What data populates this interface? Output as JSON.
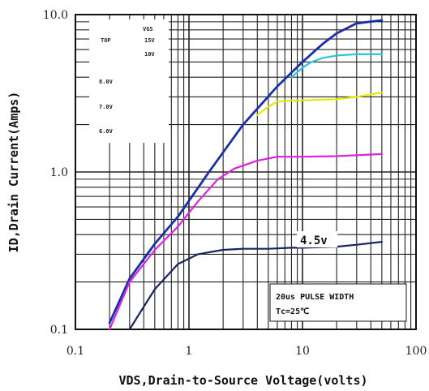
{
  "chart_data": {
    "type": "line",
    "x_scale": "log",
    "y_scale": "log",
    "xlim": [
      0.1,
      100
    ],
    "ylim": [
      0.1,
      10.0
    ],
    "x_ticks": [
      "0.1",
      "1",
      "10",
      "100"
    ],
    "y_ticks": [
      "0.1",
      "1.0",
      "10.0"
    ],
    "xlabel": "VDS,Drain-to-Source Voltage(volts)",
    "ylabel": "ID,Drain Current(Amps)",
    "grid": true,
    "legend": {
      "header": "VGS",
      "rows": [
        {
          "prefix": "TOP",
          "value": "15V"
        },
        {
          "prefix": "",
          "value": "10V"
        },
        {
          "prefix": "",
          "value": "8.0V"
        },
        {
          "prefix": "",
          "value": "7.0V"
        },
        {
          "prefix": "",
          "value": "6.0V"
        }
      ]
    },
    "annotation": [
      "20us PULSE WIDTH",
      "Tc=25℃"
    ],
    "curve_label": "4.5v",
    "series": [
      {
        "color": "#1a2fa8",
        "x": [
          0.2,
          0.3,
          0.5,
          0.8,
          1.5,
          3,
          6,
          10,
          15,
          20,
          30,
          50
        ],
        "y": [
          0.11,
          0.21,
          0.35,
          0.52,
          1.0,
          2.0,
          3.5,
          5.0,
          6.5,
          7.6,
          8.8,
          9.2
        ]
      },
      {
        "color": "#28c8d8",
        "x": [
          8,
          10,
          12,
          15,
          20,
          30,
          50
        ],
        "y": [
          4.0,
          4.6,
          5.0,
          5.3,
          5.5,
          5.6,
          5.6
        ]
      },
      {
        "color": "#e8e800",
        "x": [
          4,
          5,
          6,
          8,
          10,
          20,
          30,
          50
        ],
        "y": [
          2.3,
          2.6,
          2.8,
          2.85,
          2.85,
          2.9,
          3.0,
          3.2
        ]
      },
      {
        "color": "#e020e0",
        "x": [
          0.2,
          0.3,
          0.5,
          0.8,
          1.2,
          1.8,
          2.5,
          4,
          6,
          10,
          20,
          50
        ],
        "y": [
          0.1,
          0.2,
          0.32,
          0.45,
          0.65,
          0.9,
          1.05,
          1.18,
          1.25,
          1.25,
          1.26,
          1.3
        ]
      },
      {
        "color": "#1a2460",
        "x": [
          0.3,
          0.5,
          0.8,
          1.2,
          2,
          3,
          5,
          8,
          10,
          20,
          30,
          50
        ],
        "y": [
          0.1,
          0.18,
          0.26,
          0.3,
          0.32,
          0.325,
          0.325,
          0.33,
          0.33,
          0.335,
          0.345,
          0.36
        ]
      }
    ]
  }
}
